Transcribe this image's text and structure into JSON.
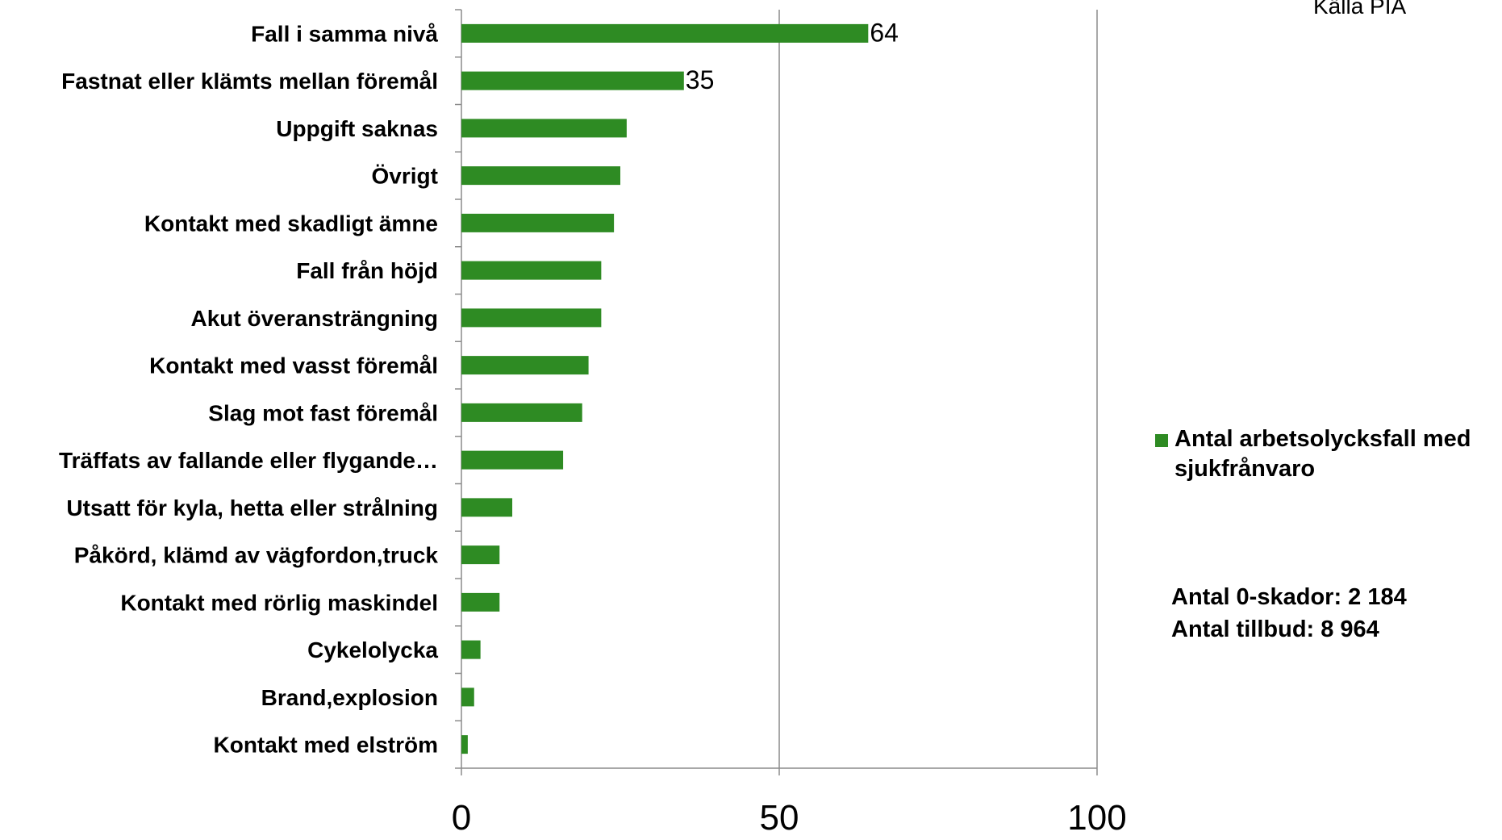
{
  "source_note": "Källa PIA",
  "legend": {
    "label": "Antal arbetsolycksfall med sjukfrånvaro"
  },
  "summary": {
    "zero_injuries": "Antal 0-skador: 2 184",
    "near_misses": "Antal tillbud: 8 964"
  },
  "colors": {
    "bar": "#2e8b23",
    "axis": "#8c8c8c",
    "grid": "#8c8c8c"
  },
  "chart_data": {
    "type": "bar",
    "orientation": "horizontal",
    "categories": [
      "Fall i samma nivå",
      "Fastnat eller klämts mellan föremål",
      "Uppgift saknas",
      "Övrigt",
      "Kontakt med skadligt ämne",
      "Fall från höjd",
      "Akut överansträngning",
      "Kontakt med vasst föremål",
      "Slag mot fast föremål",
      "Träffats av fallande eller flygande…",
      "Utsatt för kyla, hetta eller strålning",
      "Påkörd, klämd av vägfordon,truck",
      "Kontakt med rörlig maskindel",
      "Cykelolycka",
      "Brand,explosion",
      "Kontakt med elström"
    ],
    "series": [
      {
        "name": "Antal arbetsolycksfall med sjukfrånvaro",
        "values": [
          64,
          35,
          26,
          25,
          24,
          22,
          22,
          20,
          19,
          16,
          8,
          6,
          6,
          3,
          2,
          1
        ]
      }
    ],
    "data_labels": [
      "64",
      "35",
      "",
      "",
      "",
      "",
      "",
      "",
      "",
      "",
      "",
      "",
      "",
      "",
      "",
      ""
    ],
    "x_ticks": [
      0,
      50,
      100
    ],
    "xlim": [
      0,
      100
    ],
    "grid": "vertical",
    "legend_position": "right"
  }
}
